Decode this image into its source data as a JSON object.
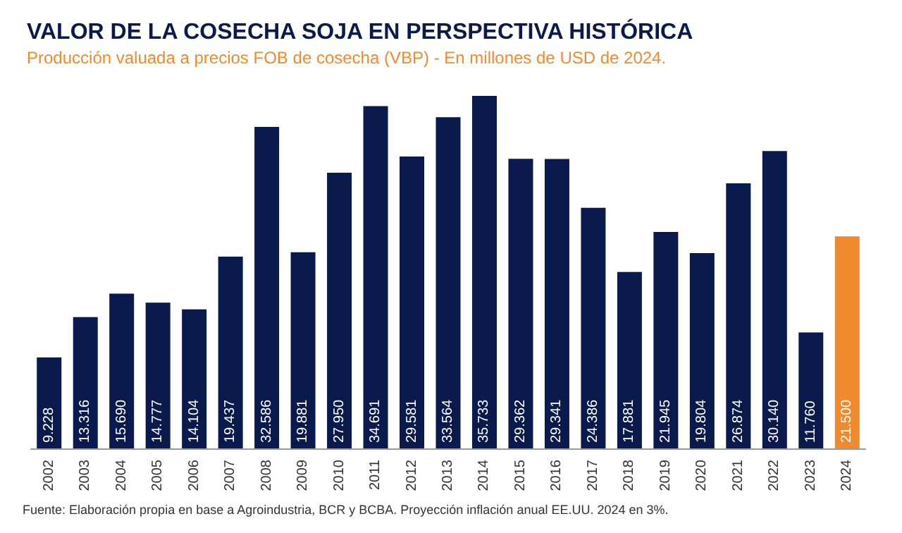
{
  "chart_data": {
    "type": "bar",
    "title": "VALOR DE LA COSECHA SOJA EN PERSPECTIVA HISTÓRICA",
    "subtitle": "Producción valuada a precios FOB de cosecha (VBP) - En millones de USD de 2024.",
    "categories": [
      "2002",
      "2003",
      "2004",
      "2005",
      "2006",
      "2007",
      "2008",
      "2009",
      "2010",
      "2011",
      "2012",
      "2013",
      "2014",
      "2015",
      "2016",
      "2017",
      "2018",
      "2019",
      "2020",
      "2021",
      "2022",
      "2023",
      "2024"
    ],
    "values": [
      9228,
      13316,
      15690,
      14777,
      14104,
      19437,
      32586,
      19881,
      27950,
      34691,
      29581,
      33564,
      35733,
      29362,
      29341,
      24386,
      17881,
      21945,
      19804,
      26874,
      30140,
      11760,
      21500
    ],
    "value_labels": [
      "9.228",
      "13.316",
      "15.690",
      "14.777",
      "14.104",
      "19.437",
      "32.586",
      "19.881",
      "27.950",
      "34.691",
      "29.581",
      "33.564",
      "35.733",
      "29.362",
      "29.341",
      "24.386",
      "17.881",
      "21.945",
      "19.804",
      "26.874",
      "30.140",
      "11.760",
      "21.500"
    ],
    "colors": [
      "#0b1a4d",
      "#0b1a4d",
      "#0b1a4d",
      "#0b1a4d",
      "#0b1a4d",
      "#0b1a4d",
      "#0b1a4d",
      "#0b1a4d",
      "#0b1a4d",
      "#0b1a4d",
      "#0b1a4d",
      "#0b1a4d",
      "#0b1a4d",
      "#0b1a4d",
      "#0b1a4d",
      "#0b1a4d",
      "#0b1a4d",
      "#0b1a4d",
      "#0b1a4d",
      "#0b1a4d",
      "#0b1a4d",
      "#0b1a4d",
      "#f08a2c"
    ],
    "annotations": [
      "Fuente: Elaboración propia en base a Agroindustria, BCR y BCBA. Proyección inflación anual EE.UU. 2024 en 3%."
    ]
  }
}
